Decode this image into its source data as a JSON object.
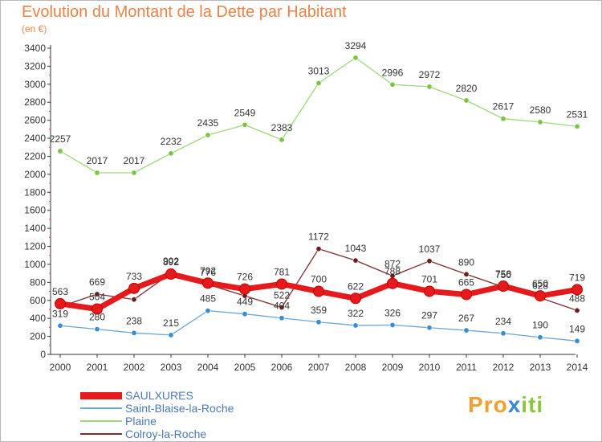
{
  "title": "Evolution du Montant de la Dette par Habitant",
  "subtitle": "(en €)",
  "logo": {
    "letters": [
      "P",
      "r",
      "o",
      "x",
      "i",
      "t",
      "i"
    ],
    "colors": [
      "#f0a030",
      "#f0a030",
      "#f0a030",
      "#3a8ad0",
      "#8cc63f",
      "#8cc63f",
      "#8cc63f"
    ]
  },
  "chart_data": {
    "type": "line",
    "x": [
      "2000",
      "2001",
      "2002",
      "2003",
      "2004",
      "2005",
      "2006",
      "2007",
      "2008",
      "2009",
      "2010",
      "2011",
      "2012",
      "2013",
      "2014"
    ],
    "ylim": [
      0,
      3400
    ],
    "yticks": [
      0,
      200,
      400,
      600,
      800,
      1000,
      1200,
      1400,
      1600,
      1800,
      2000,
      2200,
      2400,
      2600,
      2800,
      3000,
      3200,
      3400
    ],
    "grid": false,
    "legend_position": "bottom-left",
    "series": [
      {
        "name": "SAULXURES",
        "color": "#e41a1c",
        "marker": "#e41a1c",
        "width": 7,
        "values": [
          563,
          504,
          733,
          892,
          792,
          726,
          781,
          700,
          622,
          788,
          701,
          665,
          758,
          650,
          719
        ]
      },
      {
        "name": "Saint-Blaise-la-Roche",
        "color": "#6aa6d6",
        "marker": "#3b8ccc",
        "width": 1.3,
        "values": [
          319,
          280,
          238,
          215,
          485,
          449,
          404,
          359,
          322,
          326,
          297,
          267,
          234,
          190,
          149
        ]
      },
      {
        "name": "Plaine",
        "color": "#9fd77a",
        "marker": "#7cc243",
        "width": 1.3,
        "values": [
          2257,
          2017,
          2017,
          2232,
          2435,
          2549,
          2383,
          3013,
          3294,
          2996,
          2972,
          2820,
          2617,
          2580,
          2531
        ]
      },
      {
        "name": "Colroy-la-Roche",
        "color": "#7a2e2e",
        "marker": "#6a1e1e",
        "width": 1.3,
        "values": [
          530,
          669,
          610,
          902,
          776,
          650,
          522,
          1172,
          1043,
          872,
          1037,
          890,
          750,
          628,
          488
        ]
      }
    ],
    "data_labels": [
      {
        "series": 0,
        "index": 0,
        "text": "563"
      },
      {
        "series": 0,
        "index": 1,
        "text": "504"
      },
      {
        "series": 0,
        "index": 2,
        "text": "733"
      },
      {
        "series": 0,
        "index": 3,
        "text": "892"
      },
      {
        "series": 0,
        "index": 4,
        "text": "792"
      },
      {
        "series": 0,
        "index": 5,
        "text": "726"
      },
      {
        "series": 0,
        "index": 6,
        "text": "781"
      },
      {
        "series": 0,
        "index": 7,
        "text": "700"
      },
      {
        "series": 0,
        "index": 8,
        "text": "622"
      },
      {
        "series": 0,
        "index": 9,
        "text": "788"
      },
      {
        "series": 0,
        "index": 10,
        "text": "701"
      },
      {
        "series": 0,
        "index": 11,
        "text": "665"
      },
      {
        "series": 0,
        "index": 12,
        "text": "758"
      },
      {
        "series": 0,
        "index": 13,
        "text": "650"
      },
      {
        "series": 0,
        "index": 14,
        "text": "719"
      },
      {
        "series": 1,
        "index": 0,
        "text": "319"
      },
      {
        "series": 1,
        "index": 1,
        "text": "280"
      },
      {
        "series": 1,
        "index": 2,
        "text": "238"
      },
      {
        "series": 1,
        "index": 3,
        "text": "215"
      },
      {
        "series": 1,
        "index": 4,
        "text": "485"
      },
      {
        "series": 1,
        "index": 5,
        "text": "449"
      },
      {
        "series": 1,
        "index": 6,
        "text": "404"
      },
      {
        "series": 1,
        "index": 7,
        "text": "359"
      },
      {
        "series": 1,
        "index": 8,
        "text": "322"
      },
      {
        "series": 1,
        "index": 9,
        "text": "326"
      },
      {
        "series": 1,
        "index": 10,
        "text": "297"
      },
      {
        "series": 1,
        "index": 11,
        "text": "267"
      },
      {
        "series": 1,
        "index": 12,
        "text": "234"
      },
      {
        "series": 1,
        "index": 13,
        "text": "190"
      },
      {
        "series": 1,
        "index": 14,
        "text": "149"
      },
      {
        "series": 2,
        "index": 0,
        "text": "2257"
      },
      {
        "series": 2,
        "index": 1,
        "text": "2017"
      },
      {
        "series": 2,
        "index": 2,
        "text": "2017"
      },
      {
        "series": 2,
        "index": 3,
        "text": "2232"
      },
      {
        "series": 2,
        "index": 4,
        "text": "2435"
      },
      {
        "series": 2,
        "index": 5,
        "text": "2549"
      },
      {
        "series": 2,
        "index": 6,
        "text": "2383"
      },
      {
        "series": 2,
        "index": 7,
        "text": "3013"
      },
      {
        "series": 2,
        "index": 8,
        "text": "3294"
      },
      {
        "series": 2,
        "index": 9,
        "text": "2996"
      },
      {
        "series": 2,
        "index": 10,
        "text": "2972"
      },
      {
        "series": 2,
        "index": 11,
        "text": "2820"
      },
      {
        "series": 2,
        "index": 12,
        "text": "2617"
      },
      {
        "series": 2,
        "index": 13,
        "text": "2580"
      },
      {
        "series": 2,
        "index": 14,
        "text": "2531"
      },
      {
        "series": 3,
        "index": 1,
        "text": "669"
      },
      {
        "series": 3,
        "index": 3,
        "text": "902"
      },
      {
        "series": 3,
        "index": 4,
        "text": "776"
      },
      {
        "series": 3,
        "index": 6,
        "text": "522"
      },
      {
        "series": 3,
        "index": 7,
        "text": "1172"
      },
      {
        "series": 3,
        "index": 8,
        "text": "1043"
      },
      {
        "series": 3,
        "index": 9,
        "text": "872"
      },
      {
        "series": 3,
        "index": 10,
        "text": "1037"
      },
      {
        "series": 3,
        "index": 11,
        "text": "890"
      },
      {
        "series": 3,
        "index": 12,
        "text": "750"
      },
      {
        "series": 3,
        "index": 13,
        "text": "628"
      },
      {
        "series": 3,
        "index": 14,
        "text": "488"
      }
    ]
  }
}
